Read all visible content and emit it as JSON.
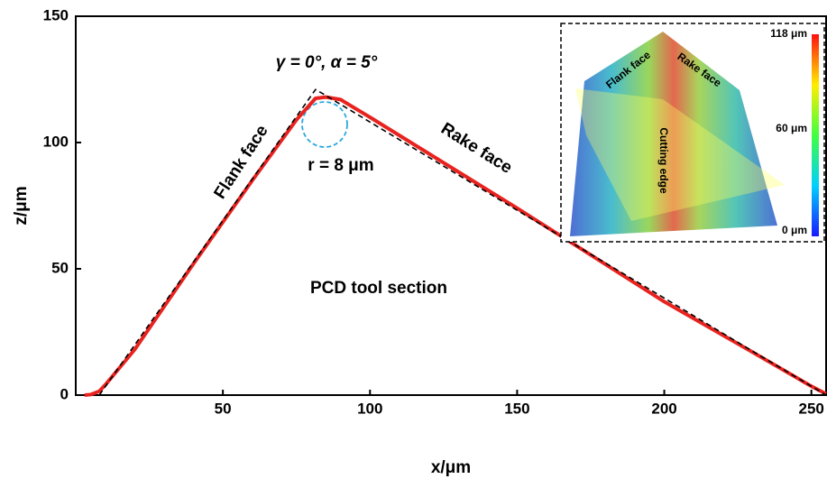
{
  "chart_data": {
    "type": "line",
    "x_label": "x/μm",
    "y_label": "z/μm",
    "x": [
      3,
      5,
      8,
      10,
      20,
      40,
      60,
      75,
      81.5,
      85,
      90,
      100,
      150,
      200,
      230,
      250,
      255
    ],
    "series": [
      {
        "color": "#e8231f",
        "dash": false,
        "values": [
          0,
          0.2,
          1.5,
          4,
          18,
          52,
          85,
          109,
          117.5,
          118,
          117,
          110,
          74,
          37,
          17,
          3.5,
          0.5
        ]
      },
      {
        "color": "#000000",
        "dash": true,
        "values": [
          null,
          null,
          0,
          3.3,
          19.8,
          52.7,
          85.6,
          110.3,
          121,
          118.6,
          115.1,
          108.1,
          73.2,
          38.4,
          17.4,
          3.5,
          0
        ]
      }
    ],
    "xlim": [
      0,
      255
    ],
    "ylim": [
      0,
      150
    ],
    "xticks": [
      50,
      100,
      150,
      200,
      250
    ],
    "yticks": [
      0,
      50,
      100,
      150
    ],
    "annotations": {
      "angles": "γ = 0°, α = 5°",
      "radius": "r = 8 μm",
      "flank": "Flank face",
      "rake": "Rake face",
      "section": "PCD tool section"
    },
    "inset": {
      "flank": "Flank face",
      "rake": "Rake face",
      "edge": "Cutting edge",
      "colorbar": [
        "118 μm",
        "60 μm",
        "0 μm"
      ]
    }
  }
}
